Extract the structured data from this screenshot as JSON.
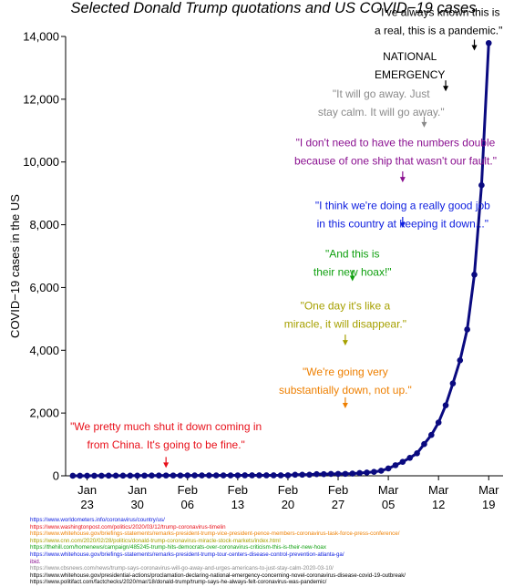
{
  "chart_data": {
    "type": "line",
    "title": "Selected Donald Trump quotations and US COVID−19 cases",
    "ylabel": "COVID−19 cases in the US",
    "xlabel": "",
    "ylim": [
      0,
      14000
    ],
    "yticks": [
      0,
      2000,
      4000,
      6000,
      8000,
      10000,
      12000,
      14000
    ],
    "ytick_labels": [
      "0",
      "2,000",
      "4,000",
      "6,000",
      "8,000",
      "10,000",
      "12,000",
      "14,000"
    ],
    "xlim": [
      "2020-01-20",
      "2020-03-21"
    ],
    "xticks": [
      {
        "date": "2020-01-23",
        "month": "Jan",
        "day": "23"
      },
      {
        "date": "2020-01-30",
        "month": "Jan",
        "day": "30"
      },
      {
        "date": "2020-02-06",
        "month": "Feb",
        "day": "06"
      },
      {
        "date": "2020-02-13",
        "month": "Feb",
        "day": "13"
      },
      {
        "date": "2020-02-20",
        "month": "Feb",
        "day": "20"
      },
      {
        "date": "2020-02-27",
        "month": "Feb",
        "day": "27"
      },
      {
        "date": "2020-03-05",
        "month": "Mar",
        "day": "05"
      },
      {
        "date": "2020-03-12",
        "month": "Mar",
        "day": "12"
      },
      {
        "date": "2020-03-19",
        "month": "Mar",
        "day": "19"
      }
    ],
    "series": [
      {
        "color": "#0a0a80",
        "points": [
          [
            "2020-01-21",
            1
          ],
          [
            "2020-01-22",
            1
          ],
          [
            "2020-01-23",
            1
          ],
          [
            "2020-01-24",
            2
          ],
          [
            "2020-01-25",
            2
          ],
          [
            "2020-01-26",
            5
          ],
          [
            "2020-01-27",
            5
          ],
          [
            "2020-01-28",
            5
          ],
          [
            "2020-01-29",
            5
          ],
          [
            "2020-01-30",
            6
          ],
          [
            "2020-01-31",
            7
          ],
          [
            "2020-02-01",
            8
          ],
          [
            "2020-02-02",
            8
          ],
          [
            "2020-02-03",
            11
          ],
          [
            "2020-02-04",
            11
          ],
          [
            "2020-02-05",
            11
          ],
          [
            "2020-02-06",
            12
          ],
          [
            "2020-02-07",
            12
          ],
          [
            "2020-02-08",
            12
          ],
          [
            "2020-02-09",
            12
          ],
          [
            "2020-02-10",
            12
          ],
          [
            "2020-02-11",
            13
          ],
          [
            "2020-02-12",
            13
          ],
          [
            "2020-02-13",
            14
          ],
          [
            "2020-02-14",
            15
          ],
          [
            "2020-02-15",
            15
          ],
          [
            "2020-02-16",
            15
          ],
          [
            "2020-02-17",
            15
          ],
          [
            "2020-02-18",
            15
          ],
          [
            "2020-02-19",
            15
          ],
          [
            "2020-02-20",
            15
          ],
          [
            "2020-02-21",
            35
          ],
          [
            "2020-02-22",
            35
          ],
          [
            "2020-02-23",
            35
          ],
          [
            "2020-02-24",
            53
          ],
          [
            "2020-02-25",
            53
          ],
          [
            "2020-02-26",
            59
          ],
          [
            "2020-02-27",
            60
          ],
          [
            "2020-02-28",
            62
          ],
          [
            "2020-02-29",
            70
          ],
          [
            "2020-03-01",
            88
          ],
          [
            "2020-03-02",
            104
          ],
          [
            "2020-03-03",
            125
          ],
          [
            "2020-03-04",
            161
          ],
          [
            "2020-03-05",
            233
          ],
          [
            "2020-03-06",
            338
          ],
          [
            "2020-03-07",
            445
          ],
          [
            "2020-03-08",
            572
          ],
          [
            "2020-03-09",
            717
          ],
          [
            "2020-03-10",
            1010
          ],
          [
            "2020-03-11",
            1301
          ],
          [
            "2020-03-12",
            1697
          ],
          [
            "2020-03-13",
            2247
          ],
          [
            "2020-03-14",
            2943
          ],
          [
            "2020-03-15",
            3680
          ],
          [
            "2020-03-16",
            4663
          ],
          [
            "2020-03-17",
            6411
          ],
          [
            "2020-03-18",
            9259
          ],
          [
            "2020-03-19",
            13789
          ]
        ]
      }
    ],
    "annotations": [
      {
        "id": "shut-down",
        "lines": [
          "\"We pretty much shut it down coming in",
          "from China. It's going to be fine.\""
        ],
        "color": "#e8101a",
        "text_date": "2020-02-03",
        "text_value": 1450,
        "arrow_date": "2020-02-03",
        "arrow_from": 600,
        "arrow_to": 250
      },
      {
        "id": "going-down",
        "lines": [
          "\"We're going very",
          "substantially down, not up.\""
        ],
        "color": "#ee7f00",
        "text_date": "2020-02-28",
        "text_value": 3200,
        "arrow_date": "2020-02-28",
        "arrow_from": 2500,
        "arrow_to": 2150
      },
      {
        "id": "disappear",
        "lines": [
          "\"One day it's like a",
          "miracle, it will disappear.\""
        ],
        "color": "#a6a000",
        "text_date": "2020-02-28",
        "text_value": 5300,
        "arrow_date": "2020-02-28",
        "arrow_from": 4500,
        "arrow_to": 4150
      },
      {
        "id": "new-hoax",
        "lines": [
          "\"And this is",
          "their new hoax!\""
        ],
        "color": "#10a010",
        "text_date": "2020-02-29",
        "text_value": 6950,
        "arrow_date": "2020-02-29",
        "arrow_from": 6550,
        "arrow_to": 6200
      },
      {
        "id": "really-good-job",
        "lines": [
          "\"I think we're doing a really good job",
          "in this country at keeping it down...\""
        ],
        "color": "#1020e0",
        "text_date": "2020-03-07",
        "text_value": 8500,
        "arrow_date": "2020-03-07",
        "arrow_from": 8250,
        "arrow_to": 7900
      },
      {
        "id": "numbers-double",
        "lines": [
          "\"I don't need to have the numbers double",
          "because of one ship that wasn't our fault.\""
        ],
        "color": "#8a1090",
        "text_date": "2020-03-06",
        "text_value": 10500,
        "arrow_date": "2020-03-07",
        "arrow_from": 9700,
        "arrow_to": 9350
      },
      {
        "id": "go-away",
        "lines": [
          "\"It will go away. Just",
          "stay calm. It will go away.\""
        ],
        "color": "#8a8a8a",
        "text_date": "2020-03-04",
        "text_value": 12050,
        "arrow_date": "2020-03-10",
        "arrow_from": 11450,
        "arrow_to": 11100
      },
      {
        "id": "national-emergency",
        "lines": [
          "NATIONAL",
          "EMERGENCY"
        ],
        "color": "#000000",
        "text_date": "2020-03-08",
        "text_value": 13250,
        "arrow_date": "2020-03-13",
        "arrow_from": 12600,
        "arrow_to": 12250
      },
      {
        "id": "pandemic",
        "lines": [
          "\"I've always known this is",
          "a real, this is a pandemic.\""
        ],
        "color": "#000000",
        "text_date": "2020-03-12",
        "text_value": 14650,
        "arrow_date": "2020-03-17",
        "arrow_from": 13900,
        "arrow_to": 13550
      }
    ]
  },
  "sources": [
    {
      "text": "https://www.worldometers.info/coronavirus/country/us/",
      "color": "#1020e0"
    },
    {
      "text": "https://www.washingtonpost.com/politics/2020/03/12/trump-coronavirus-timelin",
      "color": "#e8101a"
    },
    {
      "text": "https://www.whitehouse.gov/briefings-statements/remarks-president-trump-vice-president-pence-members-coronavirus-task-force-press-conference/",
      "color": "#ee7f00"
    },
    {
      "text": "https://www.cnn.com/2020/02/28/politics/donald-trump-coronavirus-miracle-stock-markets/index.html",
      "color": "#a6a000"
    },
    {
      "text": "https://thehill.com/homenews/campaign/485245-trump-hits-democrats-over-coronavirus-criticism-this-is-their-new-hoax",
      "color": "#10a010"
    },
    {
      "text": "https://www.whitehouse.gov/briefings-statements/remarks-president-trump-tour-centers-disease-control-prevention-atlanta-ga/",
      "color": "#1020e0"
    },
    {
      "text": "ibid.",
      "color": "#8a1090"
    },
    {
      "text": "https://www.cbsnews.com/news/trump-says-coronavirus-will-go-away-and-urges-americans-to-just-stay-calm-2020-03-10/",
      "color": "#8a8a8a"
    },
    {
      "text": "https://www.whitehouse.gov/presidential-actions/proclamation-declaring-national-emergency-concerning-novel-coronavirus-disease-covid-19-outbreak/",
      "color": "#000000"
    },
    {
      "text": "https://www.politifact.com/factchecks/2020/mar/18/donald-trump/trump-says-he-always-felt-coronavirus-was-pandemic/",
      "color": "#000000"
    }
  ]
}
